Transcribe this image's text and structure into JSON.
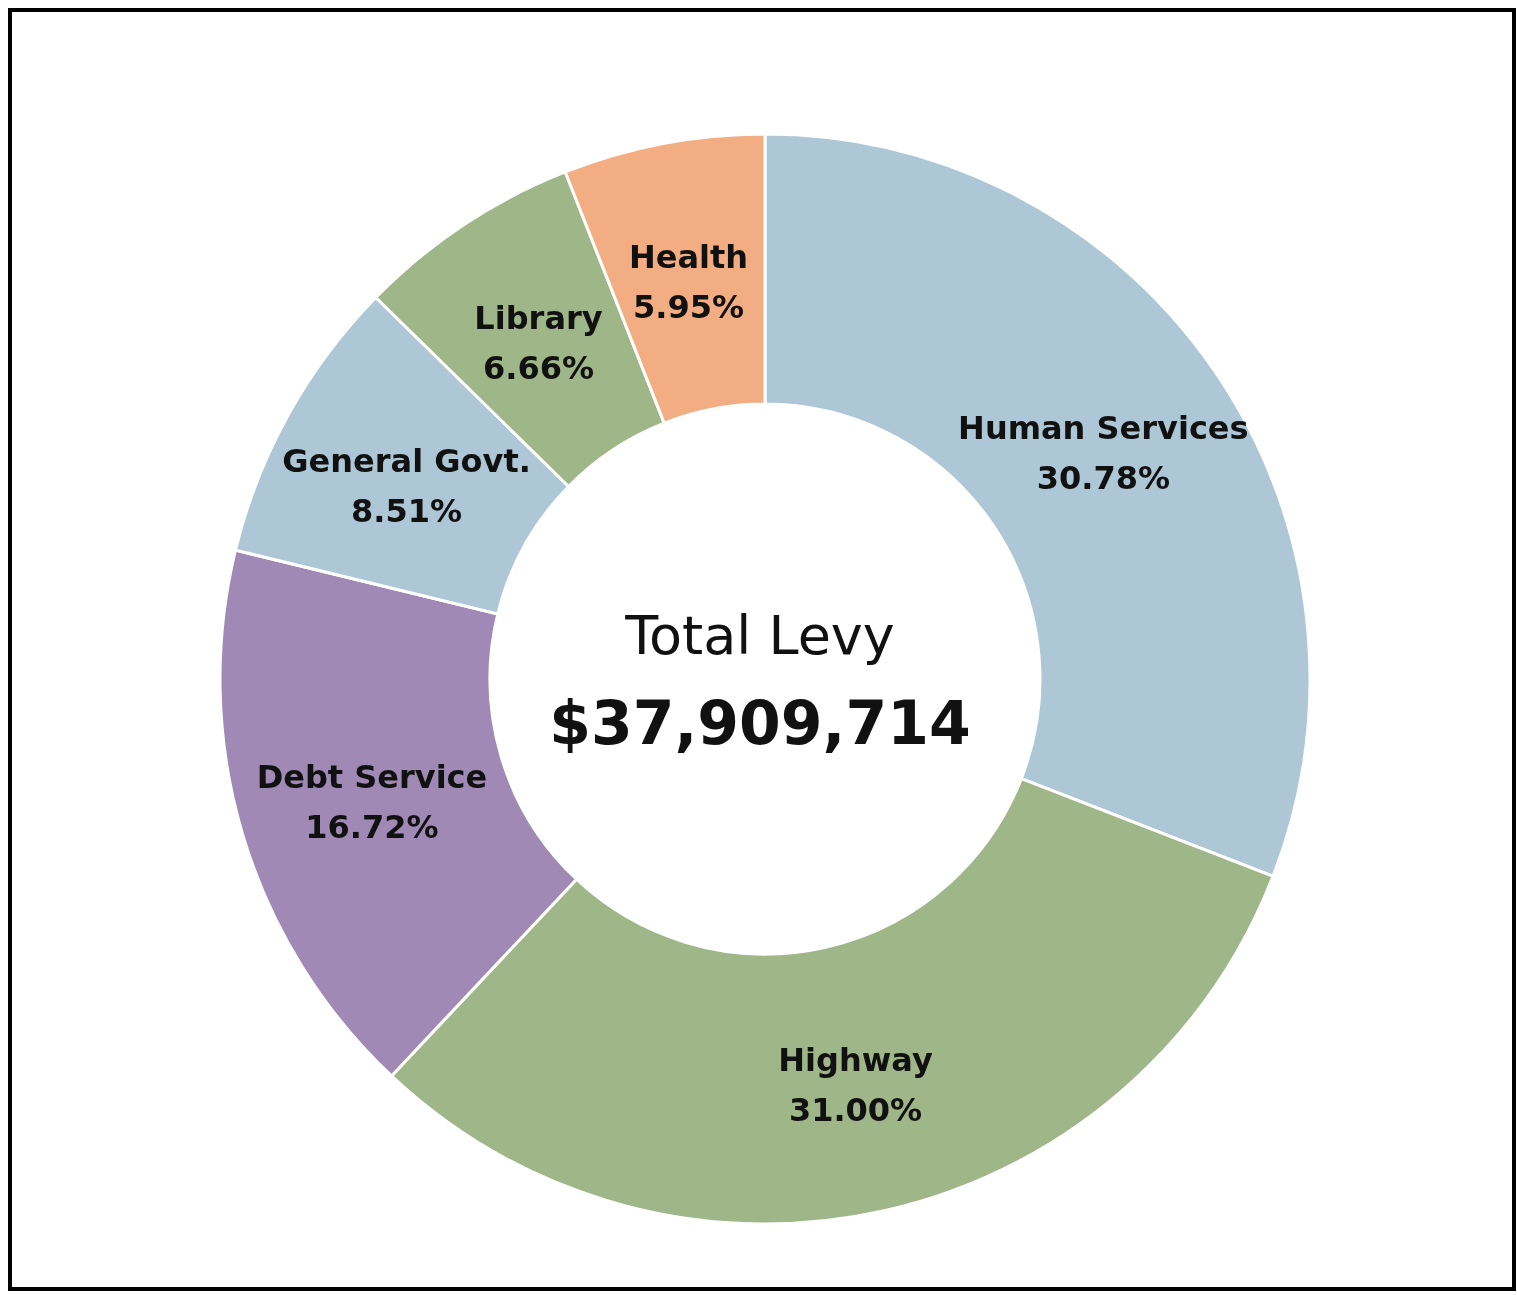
{
  "chart_data": {
    "type": "donut",
    "categories": [
      "Human Services",
      "Highway",
      "Debt Service",
      "General Govt.",
      "Library",
      "Health"
    ],
    "values": [
      30.78,
      31.0,
      16.72,
      8.51,
      6.66,
      5.95
    ],
    "value_labels": [
      "30.78%",
      "31.00%",
      "16.72%",
      "8.51%",
      "6.66%",
      "5.95%"
    ],
    "colors": [
      "#adc7d6",
      "#9fb788",
      "#a08ab5",
      "#adc7d6",
      "#9fb788",
      "#f2ae82"
    ],
    "annotations": [
      "Total Levy",
      "$37,909,714"
    ],
    "legend": false
  }
}
